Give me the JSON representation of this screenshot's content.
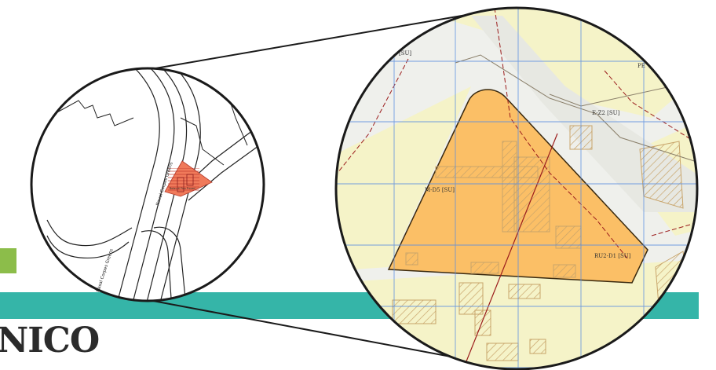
{
  "heading": "NICO",
  "colors": {
    "band": "#35b5a8",
    "accent_square": "#8cbd4a",
    "zone_fill": "#f6dc8c",
    "zone_fill_light": "#f7f3c9",
    "highlight_parcel": "#fbbf66",
    "grid": "#5b8fe0",
    "boundary": "#9b1c1c",
    "road_gray": "#e5e5e5",
    "inset_parcel": "#f07a5a"
  },
  "overview_map": {
    "street_labels": [
      "Naval Corpes Greens",
      "Nasal Corpes Greens"
    ],
    "site_label": "Botas di Pino   Proved"
  },
  "zoom_map": {
    "zone_labels": [
      "[SU]",
      "PE",
      "E-Z2 [SU]",
      "M-D5 [SU]",
      "RU2-D1 [SU]"
    ]
  }
}
